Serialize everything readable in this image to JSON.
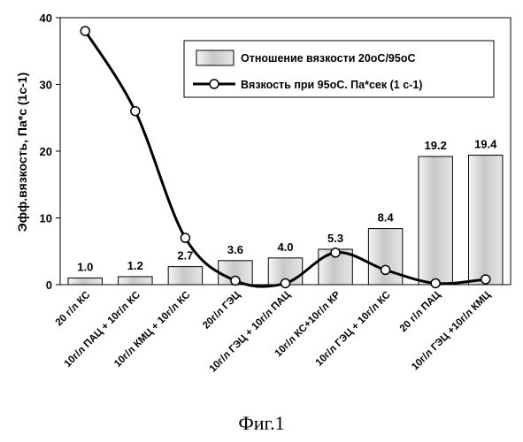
{
  "caption": "Фиг.1",
  "chart_data": {
    "type": "bar",
    "title": "",
    "xlabel": "",
    "ylabel": "Эфф.вязкость, Па*с (1с-1)",
    "ylim": [
      0,
      40
    ],
    "yticks": [
      0,
      10,
      20,
      30,
      40
    ],
    "grid": false,
    "legend_position": "top-right",
    "categories": [
      "20 г/л КС",
      "10г/л ПАЦ + 10г/л КС",
      "10г/л КМЦ + 10г/л КС",
      "20г/л ГЭЦ",
      "10г/л ГЭЦ + 10г/л ПАЦ",
      "10г/л КС+10г/л КР",
      "10г/л ГЭЦ + 10г/л КС",
      "20 г/л ПАЦ",
      "10г/л ГЭЦ +10г/л КМЦ"
    ],
    "series": [
      {
        "name": "Отношение вязкости  20оС/95оС",
        "kind": "bar",
        "color": "#d9d9d9",
        "values": [
          1.0,
          1.2,
          2.7,
          3.6,
          4.0,
          5.3,
          8.4,
          19.2,
          19.4
        ],
        "labels": [
          "1.0",
          "1.2",
          "2.7",
          "3.6",
          "4.0",
          "5.3",
          "8.4",
          "19.2",
          "19.4"
        ]
      },
      {
        "name": "Вязкость при 95оС. Па*сек (1 с-1)",
        "kind": "line",
        "color": "#000000",
        "values": [
          38.0,
          26.0,
          7.0,
          0.6,
          0.2,
          4.8,
          2.2,
          0.2,
          0.8
        ]
      }
    ]
  }
}
